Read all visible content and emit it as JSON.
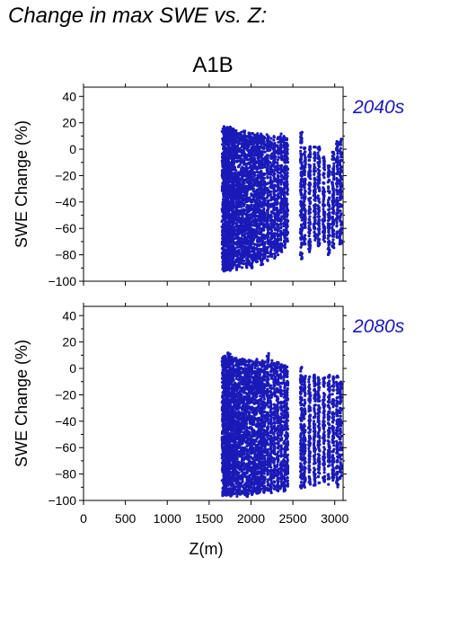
{
  "page": {
    "title": "Change in max SWE vs. Z:",
    "scenario": "A1B"
  },
  "colors": {
    "points": "#1a1ab8",
    "period_label": "#1a1ab8",
    "axis": "#000000"
  },
  "chart_data": [
    {
      "type": "scatter",
      "panel_label": "2040s",
      "xlabel": "",
      "ylabel": "SWE Change (%)",
      "xlim": [
        0,
        3100
      ],
      "ylim": [
        -100,
        47
      ],
      "xticks": [
        0,
        500,
        1000,
        1500,
        2000,
        2500,
        3000
      ],
      "yticks": [
        -100,
        -80,
        -60,
        -40,
        -20,
        0,
        20,
        40
      ],
      "show_x_tick_labels": false,
      "grid": false,
      "series": [
        {
          "point_color": "#1a1ab8",
          "x_range": [
            1650,
            3080
          ],
          "y_range": [
            -93,
            18
          ],
          "columns": [
            {
              "x": 1665,
              "y_min": -92,
              "y_max": 16
            },
            {
              "x": 1680,
              "y_min": -93,
              "y_max": 18
            },
            {
              "x": 1695,
              "y_min": -92,
              "y_max": 17
            },
            {
              "x": 1710,
              "y_min": -90,
              "y_max": 17
            },
            {
              "x": 1725,
              "y_min": -93,
              "y_max": 16
            },
            {
              "x": 1740,
              "y_min": -91,
              "y_max": 15
            },
            {
              "x": 1760,
              "y_min": -92,
              "y_max": 18
            },
            {
              "x": 1780,
              "y_min": -90,
              "y_max": 17
            },
            {
              "x": 1800,
              "y_min": -88,
              "y_max": 15
            },
            {
              "x": 1830,
              "y_min": -92,
              "y_max": 14
            },
            {
              "x": 1860,
              "y_min": -89,
              "y_max": 14
            },
            {
              "x": 1890,
              "y_min": -90,
              "y_max": 13
            },
            {
              "x": 1920,
              "y_min": -87,
              "y_max": 14
            },
            {
              "x": 1950,
              "y_min": -91,
              "y_max": 12
            },
            {
              "x": 1980,
              "y_min": -88,
              "y_max": 13
            },
            {
              "x": 2010,
              "y_min": -90,
              "y_max": 12
            },
            {
              "x": 2040,
              "y_min": -85,
              "y_max": 11
            },
            {
              "x": 2070,
              "y_min": -86,
              "y_max": 13
            },
            {
              "x": 2100,
              "y_min": -84,
              "y_max": 11
            },
            {
              "x": 2130,
              "y_min": -88,
              "y_max": 12
            },
            {
              "x": 2160,
              "y_min": -83,
              "y_max": 10
            },
            {
              "x": 2200,
              "y_min": -85,
              "y_max": 12
            },
            {
              "x": 2240,
              "y_min": -82,
              "y_max": 9
            },
            {
              "x": 2280,
              "y_min": -84,
              "y_max": 11
            },
            {
              "x": 2320,
              "y_min": -80,
              "y_max": 10
            },
            {
              "x": 2360,
              "y_min": -78,
              "y_max": 12
            },
            {
              "x": 2400,
              "y_min": -76,
              "y_max": 11
            },
            {
              "x": 2430,
              "y_min": -70,
              "y_max": 9
            },
            {
              "x": 2600,
              "y_min": -84,
              "y_max": 13
            },
            {
              "x": 2640,
              "y_min": -72,
              "y_max": 2
            },
            {
              "x": 2700,
              "y_min": -78,
              "y_max": 2
            },
            {
              "x": 2760,
              "y_min": -69,
              "y_max": 3
            },
            {
              "x": 2810,
              "y_min": -74,
              "y_max": 2
            },
            {
              "x": 2870,
              "y_min": -70,
              "y_max": -5
            },
            {
              "x": 2930,
              "y_min": -80,
              "y_max": -12
            },
            {
              "x": 2980,
              "y_min": -75,
              "y_max": 0
            },
            {
              "x": 3030,
              "y_min": -68,
              "y_max": 6
            },
            {
              "x": 3070,
              "y_min": -72,
              "y_max": 8
            }
          ]
        }
      ]
    },
    {
      "type": "scatter",
      "panel_label": "2080s",
      "xlabel": "Z(m)",
      "ylabel": "SWE Change (%)",
      "xlim": [
        0,
        3100
      ],
      "ylim": [
        -100,
        47
      ],
      "xticks": [
        0,
        500,
        1000,
        1500,
        2000,
        2500,
        3000
      ],
      "yticks": [
        -100,
        -80,
        -60,
        -40,
        -20,
        0,
        20,
        40
      ],
      "show_x_tick_labels": true,
      "grid": false,
      "series": [
        {
          "point_color": "#1a1ab8",
          "x_range": [
            1650,
            3080
          ],
          "y_range": [
            -97,
            12
          ],
          "columns": [
            {
              "x": 1665,
              "y_min": -97,
              "y_max": 10
            },
            {
              "x": 1680,
              "y_min": -96,
              "y_max": 9
            },
            {
              "x": 1695,
              "y_min": -97,
              "y_max": 10
            },
            {
              "x": 1710,
              "y_min": -96,
              "y_max": 8
            },
            {
              "x": 1725,
              "y_min": -97,
              "y_max": 12
            },
            {
              "x": 1740,
              "y_min": -96,
              "y_max": 11
            },
            {
              "x": 1760,
              "y_min": -97,
              "y_max": 10
            },
            {
              "x": 1780,
              "y_min": -96,
              "y_max": 9
            },
            {
              "x": 1800,
              "y_min": -95,
              "y_max": 8
            },
            {
              "x": 1830,
              "y_min": -97,
              "y_max": 8
            },
            {
              "x": 1860,
              "y_min": -96,
              "y_max": 7
            },
            {
              "x": 1890,
              "y_min": -95,
              "y_max": 8
            },
            {
              "x": 1920,
              "y_min": -96,
              "y_max": 7
            },
            {
              "x": 1950,
              "y_min": -97,
              "y_max": 6
            },
            {
              "x": 1980,
              "y_min": -95,
              "y_max": 7
            },
            {
              "x": 2010,
              "y_min": -96,
              "y_max": 6
            },
            {
              "x": 2040,
              "y_min": -94,
              "y_max": 5
            },
            {
              "x": 2070,
              "y_min": -95,
              "y_max": 7
            },
            {
              "x": 2100,
              "y_min": -96,
              "y_max": 6
            },
            {
              "x": 2130,
              "y_min": -94,
              "y_max": 7
            },
            {
              "x": 2160,
              "y_min": -95,
              "y_max": 5
            },
            {
              "x": 2200,
              "y_min": -93,
              "y_max": 12
            },
            {
              "x": 2240,
              "y_min": -95,
              "y_max": 6
            },
            {
              "x": 2280,
              "y_min": -92,
              "y_max": 4
            },
            {
              "x": 2320,
              "y_min": -94,
              "y_max": 5
            },
            {
              "x": 2360,
              "y_min": -92,
              "y_max": 3
            },
            {
              "x": 2400,
              "y_min": -93,
              "y_max": 4
            },
            {
              "x": 2430,
              "y_min": -90,
              "y_max": 2
            },
            {
              "x": 2600,
              "y_min": -92,
              "y_max": 2
            },
            {
              "x": 2640,
              "y_min": -90,
              "y_max": -2
            },
            {
              "x": 2700,
              "y_min": -88,
              "y_max": -6
            },
            {
              "x": 2760,
              "y_min": -90,
              "y_max": -4
            },
            {
              "x": 2810,
              "y_min": -87,
              "y_max": -5
            },
            {
              "x": 2870,
              "y_min": -86,
              "y_max": -7
            },
            {
              "x": 2930,
              "y_min": -88,
              "y_max": -5
            },
            {
              "x": 2980,
              "y_min": -85,
              "y_max": -6
            },
            {
              "x": 3030,
              "y_min": -90,
              "y_max": -5
            },
            {
              "x": 3070,
              "y_min": -84,
              "y_max": -10
            }
          ]
        }
      ]
    }
  ]
}
